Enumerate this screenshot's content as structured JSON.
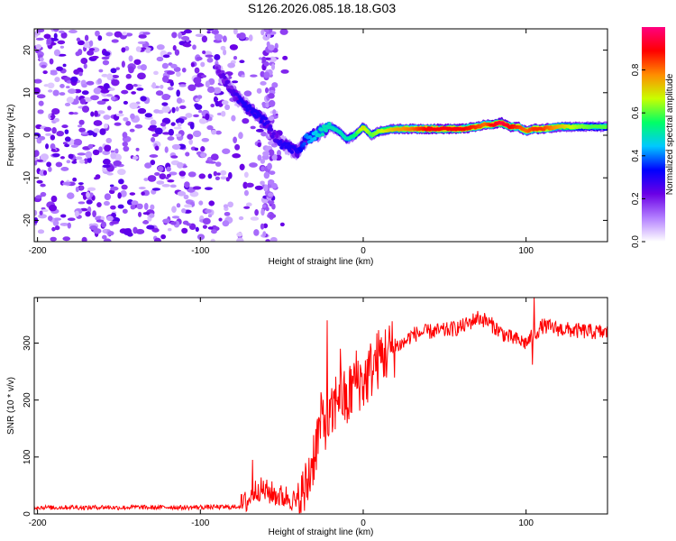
{
  "title": "S126.2026.085.18.18.G03",
  "chart_data": [
    {
      "type": "heatmap",
      "title": "S126.2026.085.18.18.G03",
      "xlabel": "Height of straight line (km)",
      "ylabel": "Frequency (Hz)",
      "xlim": [
        -202,
        150
      ],
      "ylim": [
        -25,
        25
      ],
      "x_ticks": [
        -200,
        -100,
        0,
        100
      ],
      "x_tick_labels": [
        "-200",
        "-100",
        "0",
        "100"
      ],
      "y_ticks": [
        -20,
        -10,
        0,
        10,
        20
      ],
      "y_tick_labels": [
        "-20",
        "-10",
        "0",
        "10",
        "20"
      ],
      "grid": false,
      "colorbar": {
        "label": "Normalized spectral amplitude",
        "range": [
          0,
          1
        ],
        "ticks": [
          0,
          0.2,
          0.4,
          0.6,
          0.8
        ],
        "tick_labels": [
          "0.0",
          "0.2",
          "0.4",
          "0.6",
          "0.8"
        ],
        "colors": [
          "#ffffff",
          "#b37fff",
          "#6b00e6",
          "#0000ff",
          "#00c8ff",
          "#00ff66",
          "#c8ff00",
          "#ff8c00",
          "#ff0000",
          "#ff0080"
        ]
      },
      "noise_region": {
        "x_range": [
          -202,
          -48
        ],
        "freq_range": [
          -25,
          25
        ],
        "amplitude": 0.15
      },
      "ridge": {
        "x": [
          -90,
          -85,
          -80,
          -75,
          -70,
          -65,
          -60,
          -55,
          -50,
          -45,
          -40,
          -35,
          -30,
          -25,
          -20,
          -15,
          -10,
          -5,
          0,
          5,
          10,
          20,
          30,
          40,
          50,
          60,
          70,
          75,
          80,
          85,
          90,
          95,
          100,
          105,
          110,
          120,
          130,
          140,
          150
        ],
        "freq": [
          16,
          13,
          10,
          8,
          6,
          5,
          3,
          0,
          -2,
          -3,
          -4,
          -1,
          0,
          1,
          2,
          1,
          -1,
          0,
          2,
          0,
          1,
          1.5,
          1.5,
          1.5,
          1.5,
          1.5,
          2,
          2.5,
          2.5,
          3,
          2,
          2,
          1,
          1.5,
          1.5,
          2,
          2,
          2,
          2
        ],
        "amplitude": [
          0.2,
          0.25,
          0.25,
          0.3,
          0.3,
          0.3,
          0.3,
          0.25,
          0.3,
          0.3,
          0.3,
          0.4,
          0.45,
          0.5,
          0.5,
          0.5,
          0.5,
          0.55,
          0.7,
          0.6,
          0.65,
          0.75,
          0.8,
          0.9,
          0.9,
          0.9,
          0.85,
          0.8,
          0.9,
          0.95,
          0.9,
          0.85,
          0.8,
          0.85,
          0.85,
          0.75,
          0.65,
          0.6,
          0.6
        ]
      }
    },
    {
      "type": "line",
      "xlabel": "Height of straight line (km)",
      "ylabel": "SNR (10 * v/v)",
      "xlim": [
        -202,
        150
      ],
      "ylim": [
        0,
        380
      ],
      "x_ticks": [
        -200,
        -100,
        0,
        100
      ],
      "x_tick_labels": [
        "-200",
        "-100",
        "0",
        "100"
      ],
      "y_ticks": [
        0,
        100,
        200,
        300
      ],
      "y_tick_labels": [
        "0",
        "100",
        "200",
        "300"
      ],
      "grid": false,
      "series": [
        {
          "name": "SNR",
          "color": "#ff0000",
          "x": [
            -202,
            -190,
            -180,
            -170,
            -160,
            -150,
            -140,
            -130,
            -120,
            -110,
            -100,
            -90,
            -80,
            -75,
            -70,
            -65,
            -60,
            -55,
            -50,
            -45,
            -40,
            -35,
            -30,
            -25,
            -20,
            -15,
            -10,
            -5,
            0,
            5,
            10,
            15,
            20,
            25,
            30,
            40,
            50,
            60,
            65,
            70,
            75,
            80,
            85,
            90,
            95,
            100,
            105,
            110,
            120,
            130,
            140,
            150
          ],
          "y": [
            12,
            11,
            12,
            11,
            12,
            11,
            12,
            11,
            12,
            11,
            12,
            12,
            12,
            14,
            25,
            45,
            40,
            35,
            30,
            30,
            15,
            45,
            110,
            170,
            160,
            220,
            190,
            240,
            230,
            255,
            275,
            285,
            295,
            300,
            315,
            320,
            322,
            328,
            335,
            345,
            340,
            330,
            318,
            310,
            305,
            300,
            315,
            330,
            325,
            322,
            320,
            318
          ],
          "spikes": [
            {
              "x": -68,
              "y": 95
            },
            {
              "x": -22,
              "y": 340
            },
            {
              "x": -14,
              "y": 290
            },
            {
              "x": -8,
              "y": 260
            },
            {
              "x": 104,
              "y": 262
            },
            {
              "x": 105,
              "y": 380
            }
          ]
        }
      ]
    }
  ]
}
